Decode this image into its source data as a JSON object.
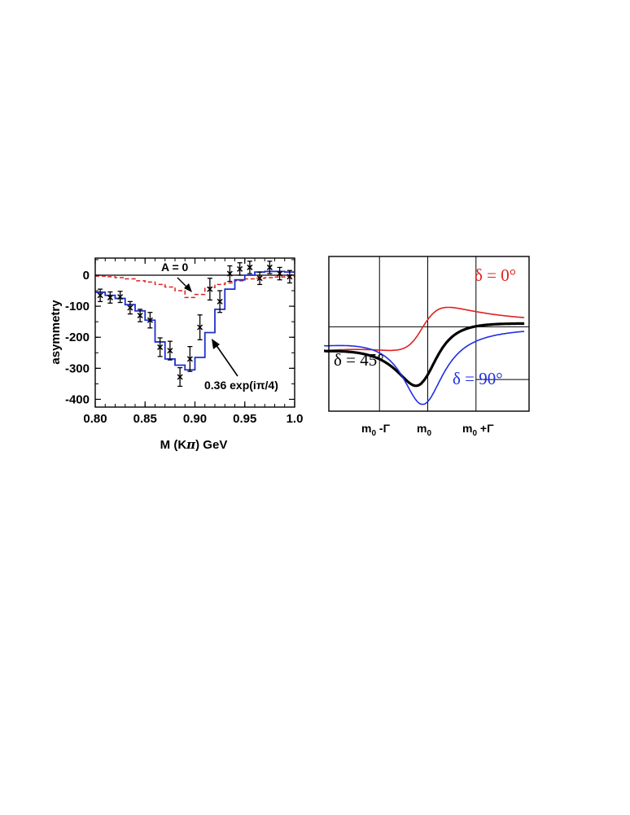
{
  "chart_data": [
    {
      "type": "line",
      "xlabel_parts": [
        "M (K",
        "π",
        ") GeV"
      ],
      "ylabel": "asymmetry",
      "xlim": [
        0.8,
        1.0
      ],
      "ylim": [
        -425,
        55
      ],
      "x_ticks": [
        "0.80",
        "0.85",
        "0.90",
        "0.95",
        "1.0"
      ],
      "x_tick_values": [
        0.8,
        0.85,
        0.9,
        0.95,
        1.0
      ],
      "y_ticks": [
        "0",
        "-100",
        "-200",
        "-300",
        "-400"
      ],
      "y_tick_values": [
        0,
        -100,
        -200,
        -300,
        -400
      ],
      "zero_line": true,
      "annotations": [
        {
          "text": "A = 0",
          "target": [
            0.9,
            -60
          ]
        },
        {
          "text": "0.36 exp(iπ/4)",
          "target": [
            0.908,
            -170
          ]
        }
      ],
      "series": [
        {
          "style": "data points with error bars",
          "color": "#000000",
          "points": [
            {
              "x": 0.805,
              "y": -65,
              "err": 20
            },
            {
              "x": 0.815,
              "y": -72,
              "err": 18
            },
            {
              "x": 0.825,
              "y": -70,
              "err": 18
            },
            {
              "x": 0.835,
              "y": -105,
              "err": 20
            },
            {
              "x": 0.845,
              "y": -130,
              "err": 20
            },
            {
              "x": 0.855,
              "y": -145,
              "err": 25
            },
            {
              "x": 0.865,
              "y": -232,
              "err": 30
            },
            {
              "x": 0.875,
              "y": -243,
              "err": 30
            },
            {
              "x": 0.885,
              "y": -328,
              "err": 30
            },
            {
              "x": 0.895,
              "y": -270,
              "err": 40
            },
            {
              "x": 0.905,
              "y": -168,
              "err": 40
            },
            {
              "x": 0.915,
              "y": -45,
              "err": 35
            },
            {
              "x": 0.925,
              "y": -85,
              "err": 35
            },
            {
              "x": 0.935,
              "y": 5,
              "err": 25
            },
            {
              "x": 0.945,
              "y": 20,
              "err": 20
            },
            {
              "x": 0.955,
              "y": 25,
              "err": 20
            },
            {
              "x": 0.965,
              "y": -10,
              "err": 20
            },
            {
              "x": 0.975,
              "y": 25,
              "err": 20
            },
            {
              "x": 0.985,
              "y": 5,
              "err": 20
            },
            {
              "x": 0.995,
              "y": -5,
              "err": 20
            }
          ]
        },
        {
          "style": "solid step histogram",
          "color": "#1f2fcc",
          "bin_edges": [
            0.8,
            0.81,
            0.82,
            0.83,
            0.84,
            0.85,
            0.86,
            0.87,
            0.88,
            0.89,
            0.9,
            0.91,
            0.92,
            0.93,
            0.94,
            0.95,
            0.96,
            0.97,
            0.98,
            0.99,
            1.0
          ],
          "values": [
            -55,
            -65,
            -75,
            -95,
            -115,
            -145,
            -215,
            -270,
            -290,
            -305,
            -265,
            -185,
            -110,
            -45,
            -15,
            0,
            10,
            12,
            12,
            10
          ]
        },
        {
          "style": "dashed step histogram",
          "color": "#dd2222",
          "bin_edges": [
            0.8,
            0.81,
            0.82,
            0.83,
            0.84,
            0.85,
            0.86,
            0.87,
            0.88,
            0.89,
            0.9,
            0.91,
            0.92,
            0.93,
            0.94,
            0.95,
            0.96,
            0.97,
            0.98,
            0.99,
            1.0
          ],
          "values": [
            -3,
            -5,
            -8,
            -12,
            -18,
            -22,
            -30,
            -38,
            -50,
            -72,
            -62,
            -40,
            -30,
            -25,
            -18,
            -12,
            -10,
            -8,
            -6,
            -4
          ]
        }
      ]
    },
    {
      "type": "line",
      "x_ticks": [
        "m0 -Γ",
        "m0",
        "m0 +Γ"
      ],
      "x_tick_parts": [
        {
          "base": "m",
          "sub": "0",
          "rest": " -Γ"
        },
        {
          "base": "m",
          "sub": "0",
          "rest": ""
        },
        {
          "base": "m",
          "sub": "0",
          "rest": " +Γ"
        }
      ],
      "x_tick_values": [
        -1,
        0,
        1
      ],
      "xlim": [
        -2.05,
        2.1
      ],
      "ylim": [
        -1.2,
        1.0
      ],
      "grid": true,
      "background_offset": -0.2,
      "curves": [
        {
          "label": "δ = 0°",
          "delta_deg": 0,
          "color": "#e02020",
          "width": 1.6
        },
        {
          "label": "δ = 45°",
          "delta_deg": 45,
          "color": "#000000",
          "width": 3.2
        },
        {
          "label": "δ = 90°",
          "delta_deg": 90,
          "color": "#1f2fe0",
          "width": 1.6
        }
      ]
    }
  ]
}
